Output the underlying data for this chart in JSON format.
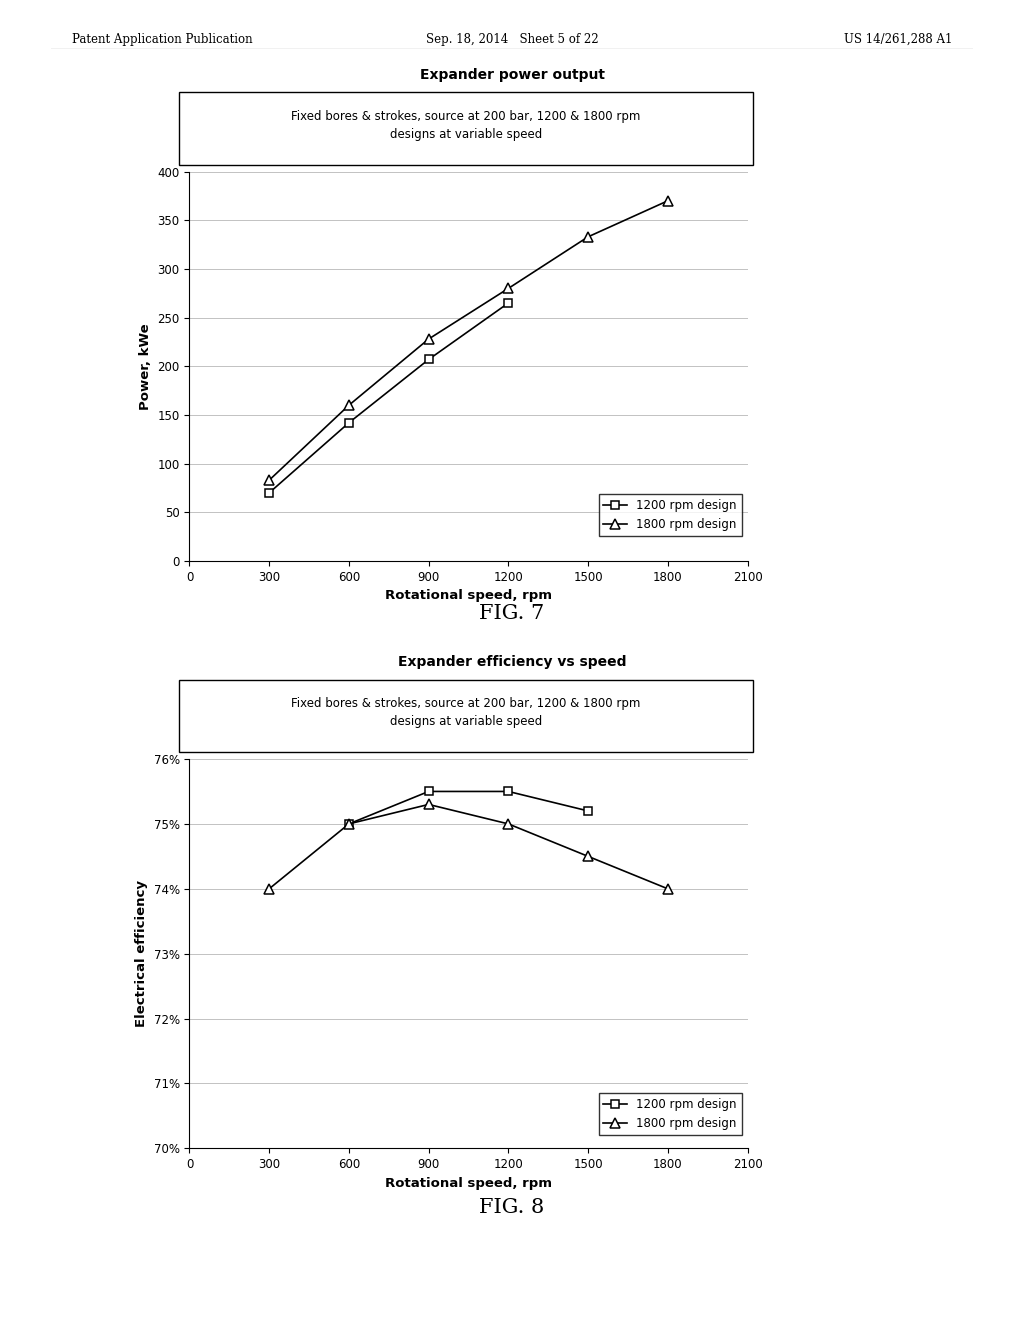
{
  "fig7": {
    "title": "Expander power output",
    "subtitle": "Fixed bores & strokes, source at 200 bar, 1200 & 1800 rpm\ndesigns at variable speed",
    "xlabel": "Rotational speed, rpm",
    "ylabel": "Power, kWe",
    "xlim": [
      0,
      2100
    ],
    "ylim": [
      0,
      400
    ],
    "xticks": [
      0,
      300,
      600,
      900,
      1200,
      1500,
      1800,
      2100
    ],
    "yticks": [
      0,
      50,
      100,
      150,
      200,
      250,
      300,
      350,
      400
    ],
    "series1200_x": [
      300,
      600,
      900,
      1200
    ],
    "series1200_y": [
      70,
      142,
      207,
      265
    ],
    "series1800_x": [
      300,
      600,
      900,
      1200,
      1500,
      1800
    ],
    "series1800_y": [
      83,
      160,
      228,
      280,
      333,
      370
    ],
    "legend1200": "1200 rpm design",
    "legend1800": "1800 rpm design"
  },
  "fig8": {
    "title": "Expander efficiency vs speed",
    "subtitle": "Fixed bores & strokes, source at 200 bar, 1200 & 1800 rpm\ndesigns at variable speed",
    "xlabel": "Rotational speed, rpm",
    "ylabel": "Electrical efficiency",
    "xlim": [
      0,
      2100
    ],
    "ylim": [
      70,
      76
    ],
    "xticks": [
      0,
      300,
      600,
      900,
      1200,
      1500,
      1800,
      2100
    ],
    "yticks": [
      70,
      71,
      72,
      73,
      74,
      75,
      76
    ],
    "ytick_labels": [
      "70%",
      "71%",
      "72%",
      "73%",
      "74%",
      "75%",
      "76%"
    ],
    "series1200_x": [
      600,
      900,
      1200,
      1500
    ],
    "series1200_y": [
      75.0,
      75.5,
      75.5,
      75.2
    ],
    "series1800_x": [
      300,
      600,
      900,
      1200,
      1500,
      1800
    ],
    "series1800_y": [
      74.0,
      75.0,
      75.3,
      75.0,
      74.5,
      74.0
    ],
    "legend1200": "1200 rpm design",
    "legend1800": "1800 rpm design"
  },
  "fig7_label": "FIG. 7",
  "fig8_label": "FIG. 8",
  "header_left": "Patent Application Publication",
  "header_center": "Sep. 18, 2014   Sheet 5 of 22",
  "header_right": "US 14/261,288 A1",
  "bg_color": "#ffffff",
  "line_color": "#000000",
  "marker_color": "#000000"
}
